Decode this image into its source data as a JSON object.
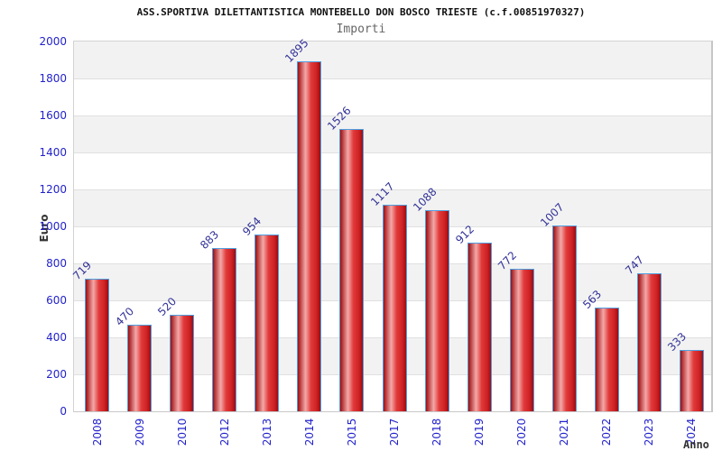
{
  "chart_data": {
    "type": "bar",
    "title": "ASS.SPORTIVA DILETTANTISTICA MONTEBELLO DON BOSCO TRIESTE (c.f.00851970327)",
    "subtitle": "Importi",
    "xlabel": "Anno",
    "ylabel": "Euro",
    "categories": [
      "2008",
      "2009",
      "2010",
      "2012",
      "2013",
      "2014",
      "2015",
      "2017",
      "2018",
      "2019",
      "2020",
      "2021",
      "2022",
      "2023",
      "2024"
    ],
    "values": [
      719,
      470,
      520,
      883,
      954,
      1895,
      1526,
      1117,
      1088,
      912,
      772,
      1007,
      563,
      747,
      333
    ],
    "ylim": [
      0,
      2000
    ],
    "yticks": [
      0,
      200,
      400,
      600,
      800,
      1000,
      1200,
      1400,
      1600,
      1800,
      2000
    ],
    "grid": "horizontal-bands",
    "legend_position": "none",
    "colors": {
      "tick_label": "#2222cc",
      "value_label": "#333399",
      "bar_border": "#4f9fe0",
      "bar_dark": "#9e0d10",
      "bar_light": "#f4a9a9",
      "bar_mid": "#e13a3a",
      "band": "#f2f2f2",
      "gridline": "#e0e0e0",
      "frame": "#c9c9c9",
      "title": "#111111",
      "subtitle": "#666666",
      "axis_title": "#333333"
    }
  }
}
